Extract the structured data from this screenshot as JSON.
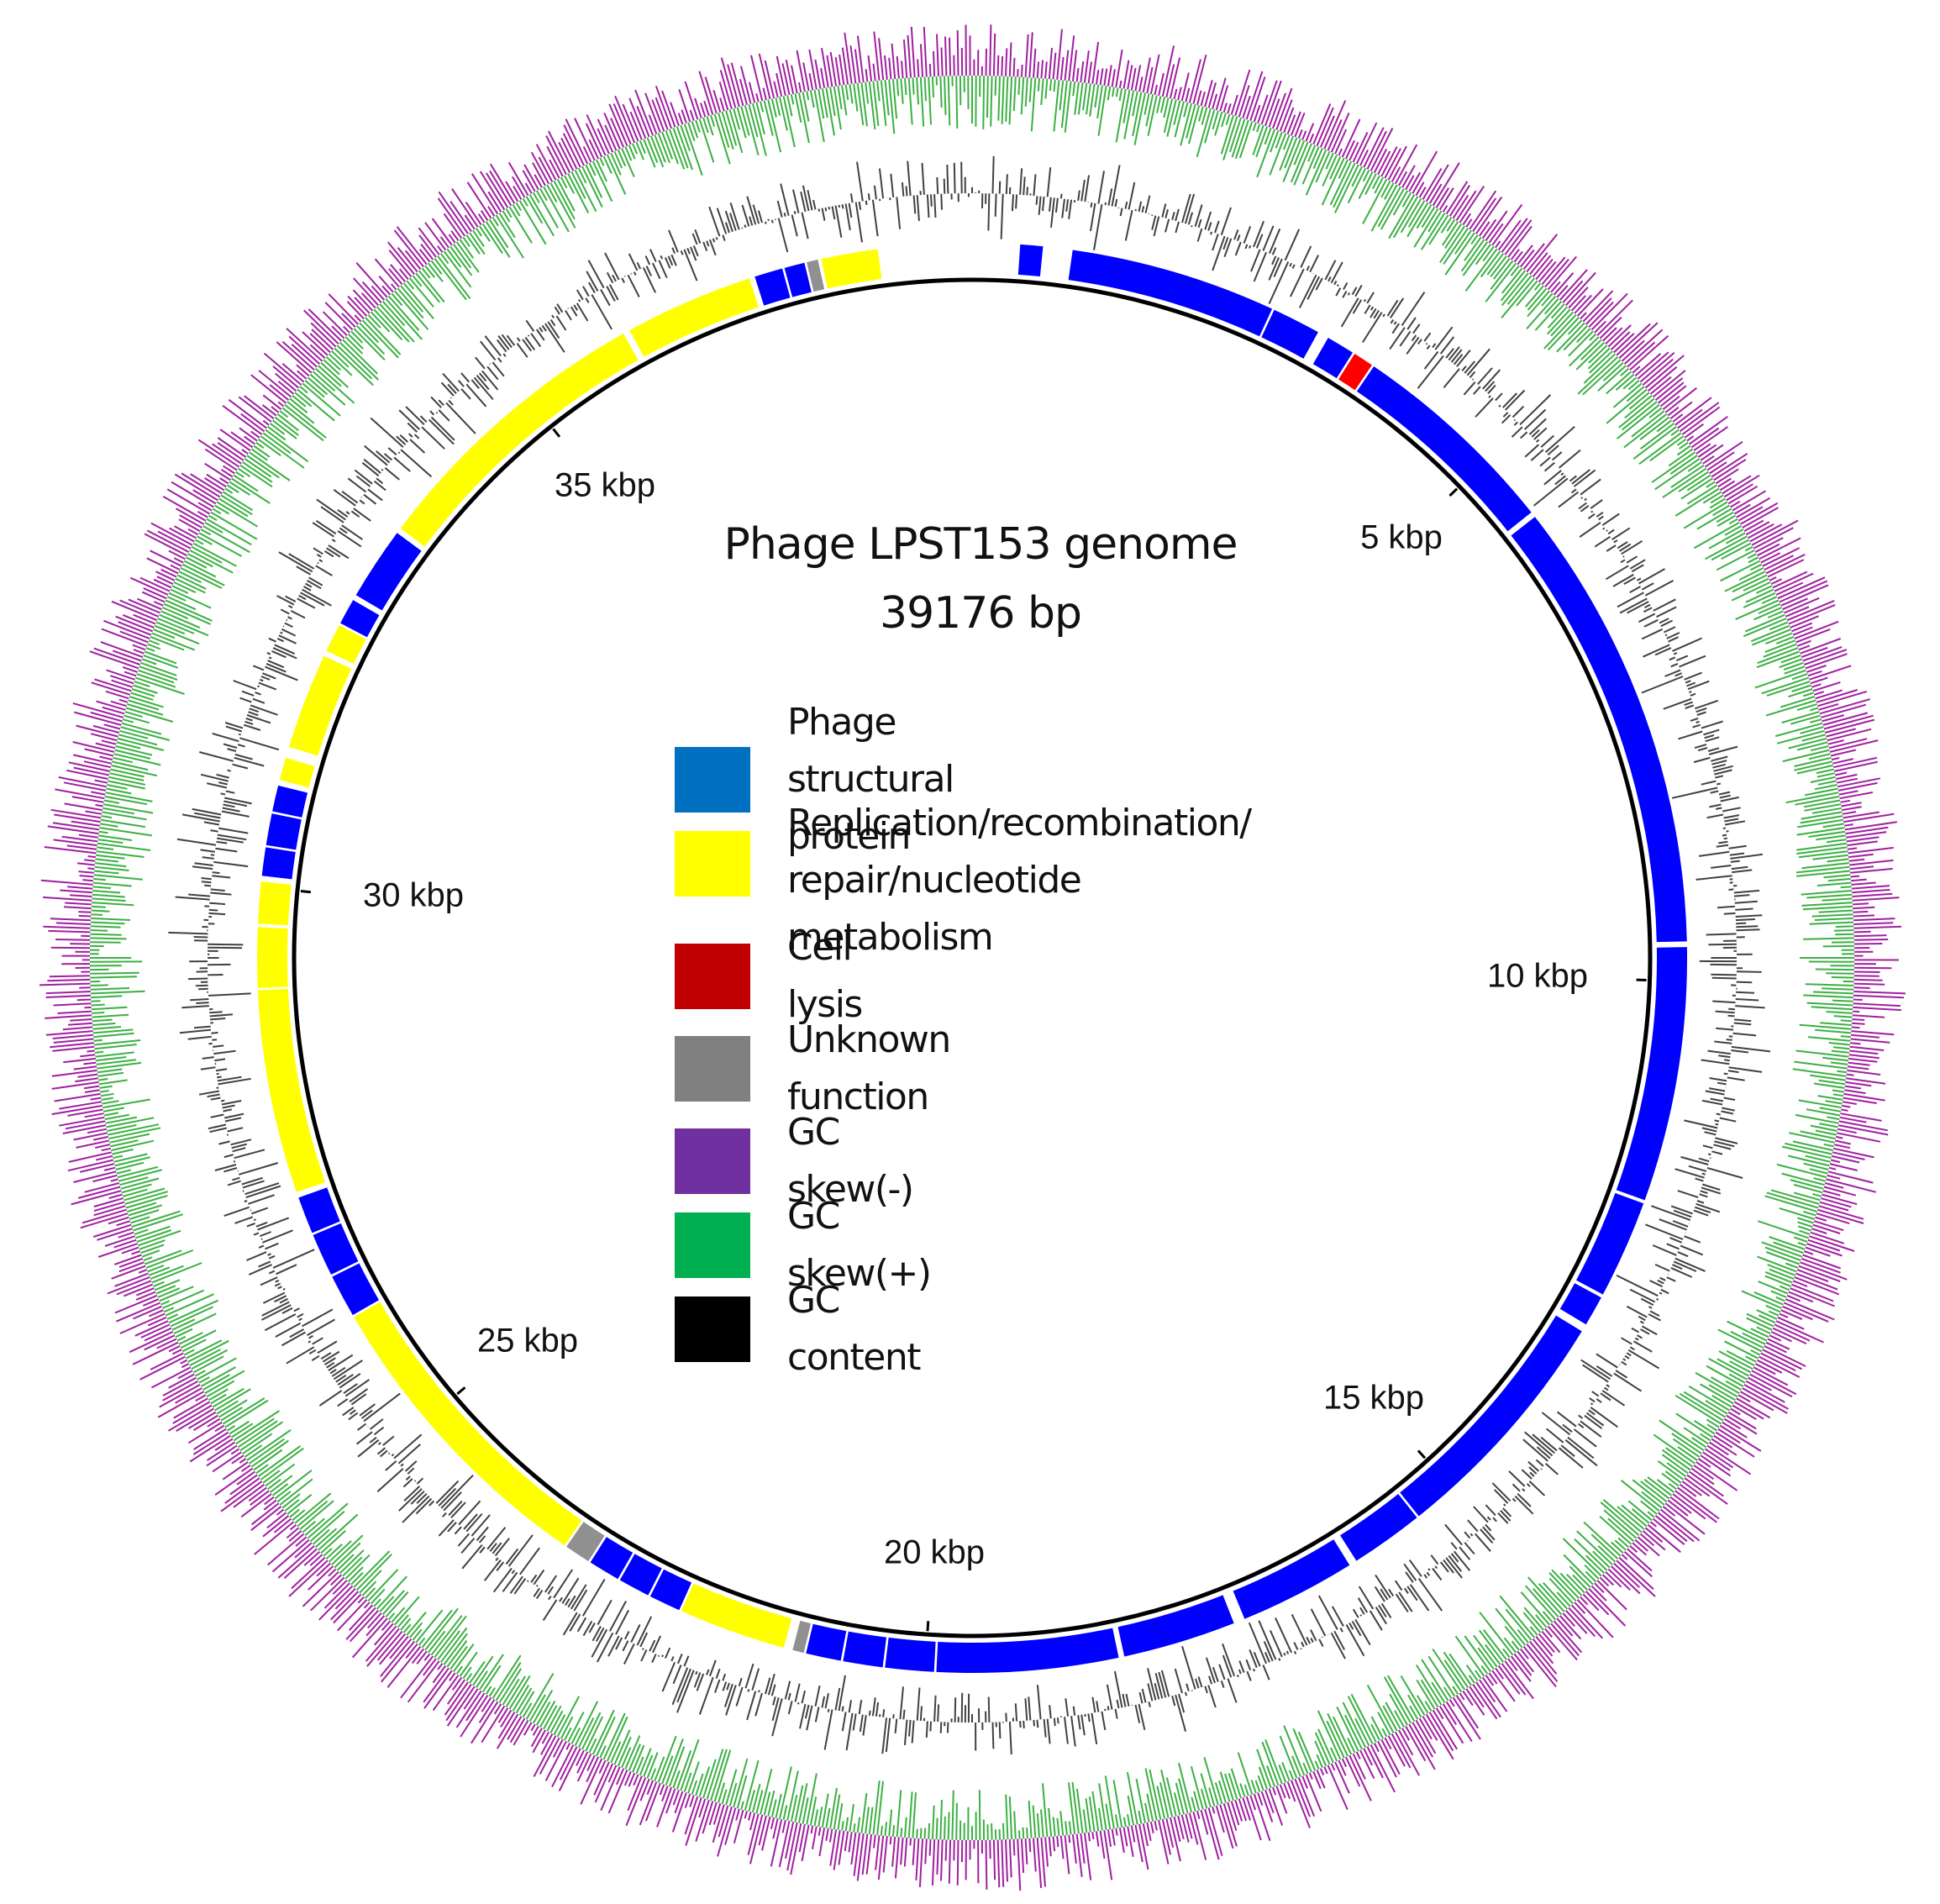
{
  "title": {
    "line1": "Phage LPST153 genome",
    "line2": "39176 bp"
  },
  "legend": [
    {
      "key": "structural",
      "label": "Phage structural protein",
      "color": "#0070c0"
    },
    {
      "key": "replication",
      "label": "Replication/recombination/\nrepair/nucleotide metabolism",
      "label_line1": "Replication/recombination/",
      "label_line2": "repair/nucleotide metabolism",
      "color": "#ffff00"
    },
    {
      "key": "lysis",
      "label": "Cell lysis",
      "color": "#c00000"
    },
    {
      "key": "unknown",
      "label": "Unknown function",
      "color": "#808080"
    },
    {
      "key": "gc_skew_neg",
      "label": "GC skew(-)",
      "color": "#7030a0"
    },
    {
      "key": "gc_skew_pos",
      "label": "GC skew(+)",
      "color": "#00b050"
    },
    {
      "key": "gc_content",
      "label": "GC  content",
      "color": "#000000"
    }
  ],
  "ticks": [
    {
      "label": "5 kbp",
      "bp": 5000
    },
    {
      "label": "10 kbp",
      "bp": 10000
    },
    {
      "label": "15 kbp",
      "bp": 15000
    },
    {
      "label": "20 kbp",
      "bp": 20000
    },
    {
      "label": "25 kbp",
      "bp": 25000
    },
    {
      "label": "30 kbp",
      "bp": 30000
    },
    {
      "label": "35 kbp",
      "bp": 35000
    }
  ],
  "chart_data": {
    "type": "circular_genome_map",
    "title": "Phage LPST153 genome 39176 bp",
    "genome_length_bp": 39176,
    "tracks": [
      "CDS (colored by function)",
      "GC content",
      "GC skew"
    ],
    "feature_colors": {
      "structural": "#0000ff",
      "replication": "#ffff00",
      "lysis": "#ff0000",
      "unknown": "#909090"
    },
    "genes": [
      {
        "start": 420,
        "end": 620,
        "category": "structural"
      },
      {
        "start": 880,
        "end": 2700,
        "category": "structural"
      },
      {
        "start": 2720,
        "end": 3150,
        "category": "structural"
      },
      {
        "start": 3250,
        "end": 3500,
        "category": "structural"
      },
      {
        "start": 3520,
        "end": 3700,
        "category": "lysis"
      },
      {
        "start": 3720,
        "end": 5600,
        "category": "structural"
      },
      {
        "start": 5650,
        "end": 9650,
        "category": "structural"
      },
      {
        "start": 9700,
        "end": 11950,
        "category": "structural"
      },
      {
        "start": 11980,
        "end": 12850,
        "category": "structural"
      },
      {
        "start": 12880,
        "end": 13150,
        "category": "structural"
      },
      {
        "start": 13220,
        "end": 15380,
        "category": "structural"
      },
      {
        "start": 15400,
        "end": 16050,
        "category": "structural"
      },
      {
        "start": 16120,
        "end": 17150,
        "category": "structural"
      },
      {
        "start": 17250,
        "end": 18250,
        "category": "structural"
      },
      {
        "start": 18300,
        "end": 19900,
        "category": "structural"
      },
      {
        "start": 19920,
        "end": 20350,
        "category": "structural"
      },
      {
        "start": 20370,
        "end": 20720,
        "category": "structural"
      },
      {
        "start": 20740,
        "end": 21050,
        "category": "structural"
      },
      {
        "start": 21070,
        "end": 21170,
        "category": "unknown"
      },
      {
        "start": 21250,
        "end": 22200,
        "category": "replication"
      },
      {
        "start": 22220,
        "end": 22500,
        "category": "structural"
      },
      {
        "start": 22520,
        "end": 22800,
        "category": "structural"
      },
      {
        "start": 22820,
        "end": 23100,
        "category": "structural"
      },
      {
        "start": 23120,
        "end": 23350,
        "category": "unknown"
      },
      {
        "start": 23370,
        "end": 26100,
        "category": "replication"
      },
      {
        "start": 26120,
        "end": 26500,
        "category": "structural"
      },
      {
        "start": 26520,
        "end": 26900,
        "category": "structural"
      },
      {
        "start": 26920,
        "end": 27250,
        "category": "structural"
      },
      {
        "start": 27300,
        "end": 29100,
        "category": "replication"
      },
      {
        "start": 29120,
        "end": 29650,
        "category": "replication"
      },
      {
        "start": 29680,
        "end": 30050,
        "category": "replication"
      },
      {
        "start": 30100,
        "end": 30350,
        "category": "structural"
      },
      {
        "start": 30370,
        "end": 30650,
        "category": "structural"
      },
      {
        "start": 30670,
        "end": 30900,
        "category": "structural"
      },
      {
        "start": 30950,
        "end": 31150,
        "category": "replication"
      },
      {
        "start": 31250,
        "end": 32100,
        "category": "replication"
      },
      {
        "start": 32150,
        "end": 32400,
        "category": "replication"
      },
      {
        "start": 32420,
        "end": 32650,
        "category": "structural"
      },
      {
        "start": 32700,
        "end": 33350,
        "category": "structural"
      },
      {
        "start": 33400,
        "end": 36000,
        "category": "replication"
      },
      {
        "start": 36060,
        "end": 37200,
        "category": "replication"
      },
      {
        "start": 37250,
        "end": 37500,
        "category": "structural"
      },
      {
        "start": 37520,
        "end": 37700,
        "category": "structural"
      },
      {
        "start": 37720,
        "end": 37820,
        "category": "unknown"
      },
      {
        "start": 37850,
        "end": 38350,
        "category": "replication"
      }
    ],
    "axis": {
      "ticks_kbp": [
        5,
        10,
        15,
        20,
        25,
        30,
        35
      ],
      "unit": "kbp"
    }
  }
}
